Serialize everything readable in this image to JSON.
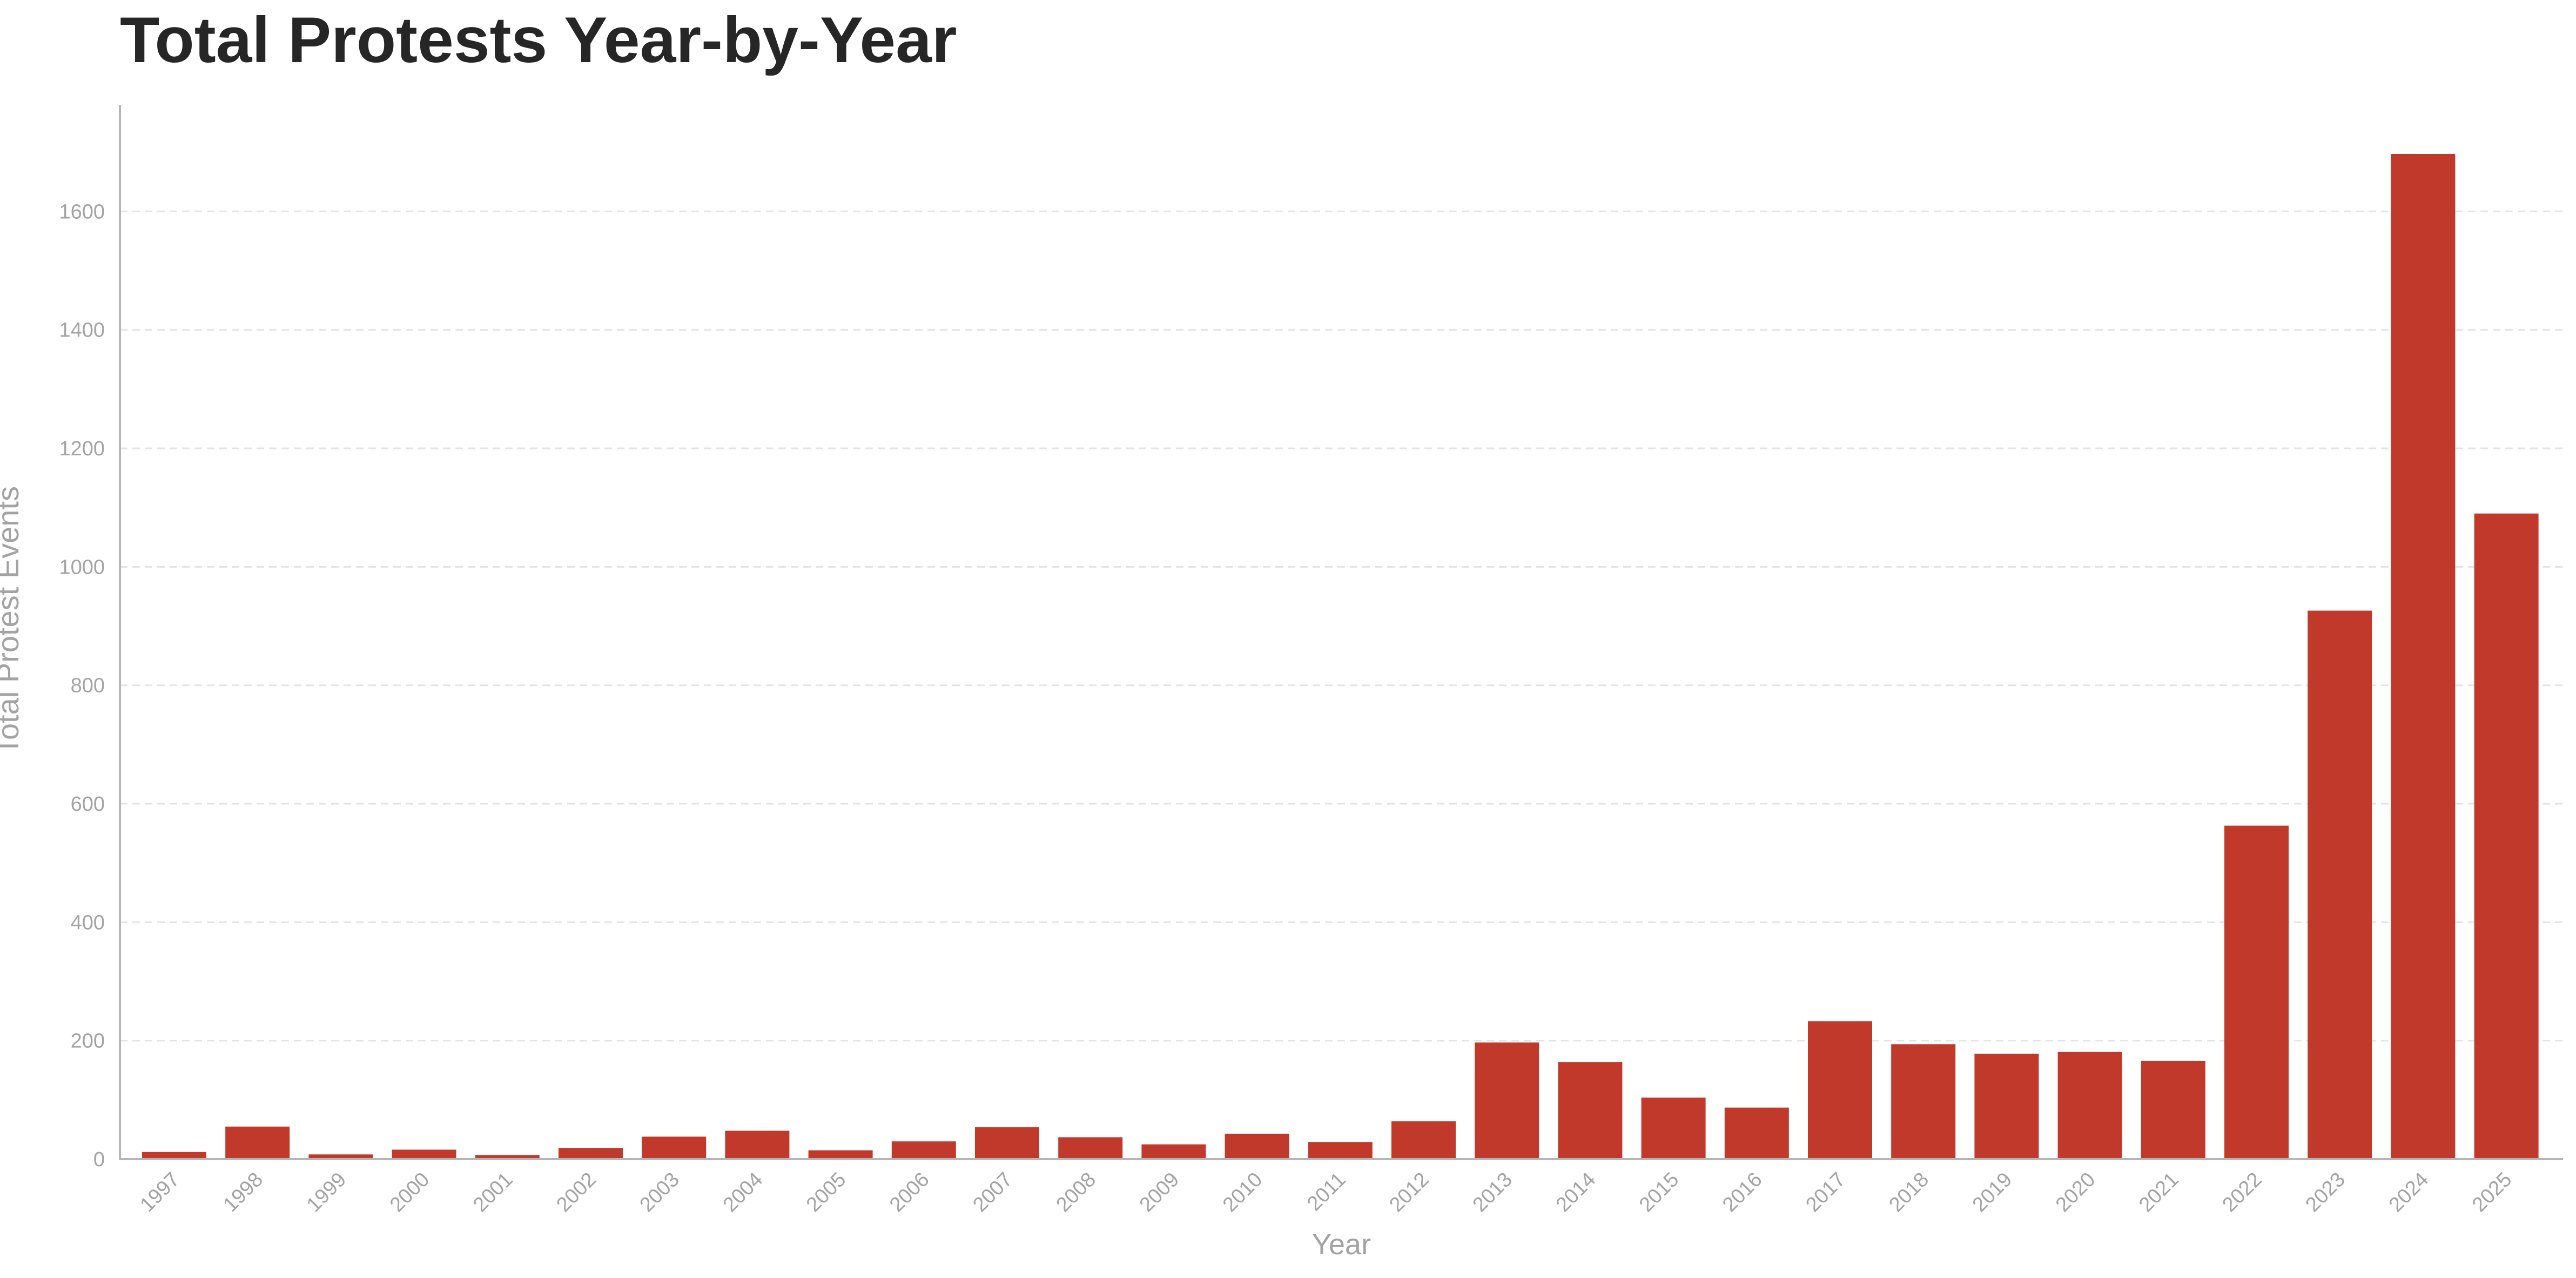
{
  "chart_data": {
    "type": "bar",
    "title": "Total Protests Year-by-Year",
    "xlabel": "Year",
    "ylabel": "Total Protest Events",
    "categories": [
      "1997",
      "1998",
      "1999",
      "2000",
      "2001",
      "2002",
      "2003",
      "2004",
      "2005",
      "2006",
      "2007",
      "2008",
      "2009",
      "2010",
      "2011",
      "2012",
      "2013",
      "2014",
      "2015",
      "2016",
      "2017",
      "2018",
      "2019",
      "2020",
      "2021",
      "2022",
      "2023",
      "2024",
      "2025"
    ],
    "values": [
      12,
      55,
      8,
      16,
      7,
      19,
      38,
      48,
      15,
      30,
      54,
      37,
      25,
      43,
      29,
      64,
      197,
      164,
      104,
      87,
      233,
      194,
      178,
      181,
      166,
      563,
      926,
      1697,
      1090
    ],
    "yticks": [
      0,
      200,
      400,
      600,
      800,
      1000,
      1200,
      1400,
      1600
    ],
    "ylim": [
      0,
      1780
    ],
    "grid": "horizontal dashed",
    "legend": "none",
    "colors": {
      "bar": "#c0392b",
      "grid": "#e3e3e3",
      "axis": "#b5b5b5",
      "tick_text": "#a3a3a3",
      "title": "#262626"
    }
  }
}
